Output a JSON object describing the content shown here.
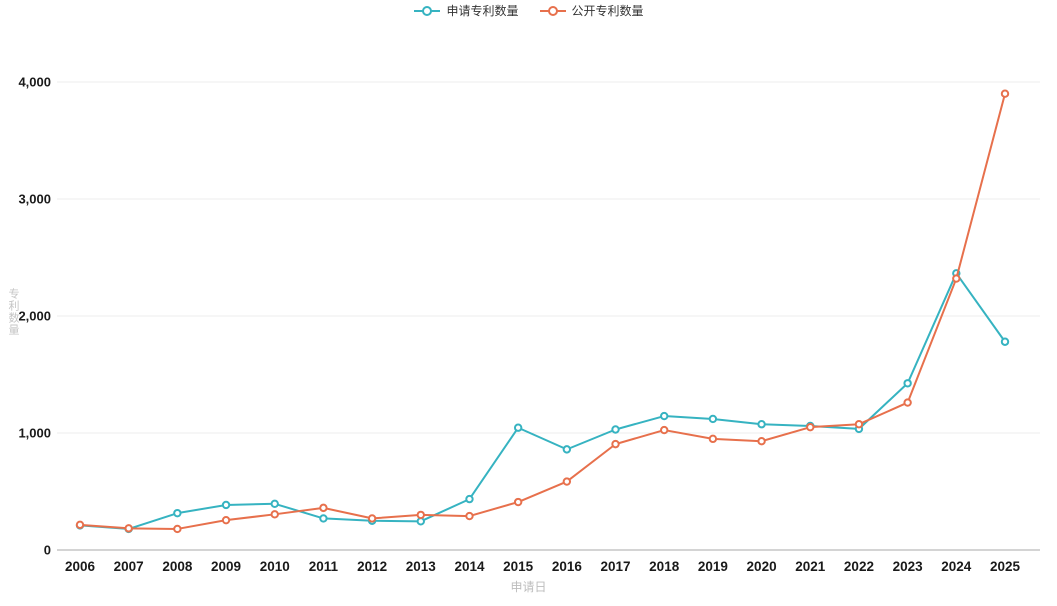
{
  "legend": {
    "items": [
      {
        "label": "申请专利数量",
        "color": "#36b3c1"
      },
      {
        "label": "公开专利数量",
        "color": "#e7704c"
      }
    ]
  },
  "chart_data": {
    "type": "line",
    "x": [
      2006,
      2007,
      2008,
      2009,
      2010,
      2011,
      2012,
      2013,
      2014,
      2015,
      2016,
      2017,
      2018,
      2019,
      2020,
      2021,
      2022,
      2023,
      2024,
      2025
    ],
    "series": [
      {
        "name": "申请专利数量",
        "color": "#36b3c1",
        "values": [
          210,
          180,
          315,
          385,
          395,
          270,
          250,
          245,
          435,
          1045,
          860,
          1030,
          1145,
          1120,
          1075,
          1060,
          1035,
          1425,
          2365,
          1780
        ]
      },
      {
        "name": "公开专利数量",
        "color": "#e7704c",
        "values": [
          215,
          185,
          180,
          255,
          305,
          360,
          270,
          300,
          290,
          410,
          585,
          905,
          1025,
          950,
          930,
          1050,
          1075,
          1260,
          2320,
          3900
        ]
      }
    ],
    "title": "",
    "xlabel": "申请日",
    "ylabel": "专利数量",
    "ylim": [
      0,
      4000
    ],
    "yticks": [
      0,
      1000,
      2000,
      3000,
      4000
    ],
    "ytick_labels": [
      "0",
      "1,000",
      "2,000",
      "3,000",
      "4,000"
    ],
    "grid": true,
    "legend_position": "top-center",
    "colors": {
      "grid_line": "#ededed",
      "axis_line": "#d4d4d4",
      "tick_text": "#1a1a1a",
      "axis_name_text": "#bdbdbd"
    }
  }
}
